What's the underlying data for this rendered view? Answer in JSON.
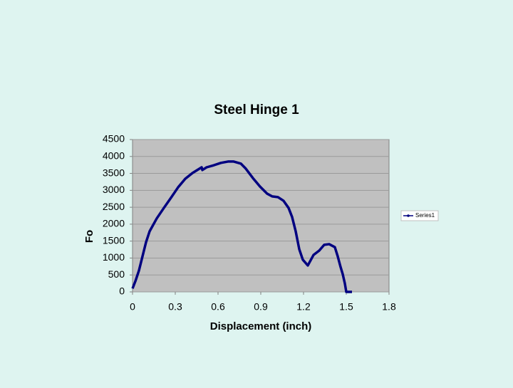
{
  "chart_data": {
    "type": "line",
    "title": "Steel Hinge 1",
    "x_label": "Displacement (inch)",
    "y_label": "Fo",
    "xlim": [
      0,
      1.8
    ],
    "xticks": [
      0,
      0.3,
      0.6,
      0.9,
      1.2,
      1.5,
      1.8
    ],
    "ylim": [
      0,
      4500
    ],
    "yticks": [
      0,
      500,
      1000,
      1500,
      2000,
      2500,
      3000,
      3500,
      4000,
      4500
    ],
    "grid": true,
    "legend": "right",
    "series": [
      {
        "name": "Series1",
        "color": "#000080",
        "x": [
          0,
          0.02,
          0.045,
          0.07,
          0.095,
          0.12,
          0.17,
          0.22,
          0.27,
          0.32,
          0.37,
          0.42,
          0.47,
          0.485,
          0.49,
          0.52,
          0.57,
          0.62,
          0.67,
          0.71,
          0.76,
          0.795,
          0.845,
          0.895,
          0.945,
          0.98,
          1.02,
          1.06,
          1.095,
          1.12,
          1.145,
          1.17,
          1.195,
          1.23,
          1.27,
          1.31,
          1.345,
          1.38,
          1.42,
          1.44,
          1.46,
          1.475,
          1.49,
          1.5,
          1.54
        ],
        "values": [
          100,
          315,
          630,
          1050,
          1470,
          1790,
          2170,
          2480,
          2780,
          3090,
          3340,
          3510,
          3640,
          3680,
          3600,
          3680,
          3740,
          3810,
          3850,
          3850,
          3790,
          3640,
          3360,
          3110,
          2900,
          2820,
          2800,
          2690,
          2480,
          2210,
          1790,
          1260,
          950,
          780,
          1090,
          1220,
          1390,
          1410,
          1320,
          1050,
          735,
          525,
          250,
          0,
          0
        ]
      }
    ]
  }
}
